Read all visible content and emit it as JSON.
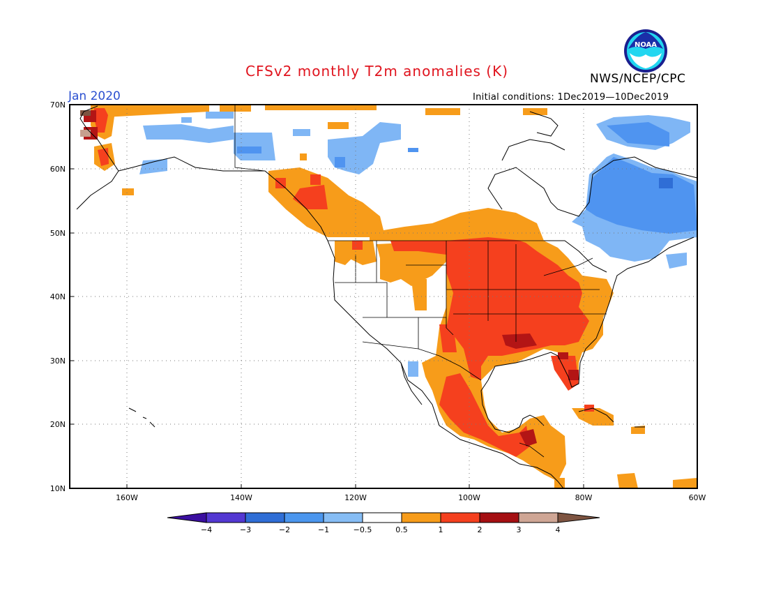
{
  "header": {
    "title": "CFSv2 monthly T2m anomalies (K)",
    "month": "Jan 2020",
    "initial_conditions": "Initial conditions: 1Dec2019—10Dec2019",
    "organization": "NWS/NCEP/CPC",
    "logo_text": "NOAA"
  },
  "map": {
    "lat_labels": [
      "70N",
      "60N",
      "50N",
      "40N",
      "30N",
      "20N",
      "10N"
    ],
    "lon_labels": [
      "160W",
      "140W",
      "120W",
      "100W",
      "80W",
      "60W"
    ],
    "colors": {
      "anom_m05_m1": "#7fb6f5",
      "anom_m1_m2": "#4f94f0",
      "anom_05_1": "#f79c1a",
      "anom_1_2": "#f5401e",
      "anom_2_3": "#b31515",
      "anom_3_4": "#c6a08e",
      "anom_gt4": "#7e5441"
    }
  },
  "colorbar": {
    "labels": [
      "−4",
      "−3",
      "−2",
      "−1",
      "−0.5",
      "0.5",
      "1",
      "2",
      "3",
      "4"
    ],
    "colors": [
      "#3b0fa0",
      "#5338d2",
      "#2f6ed6",
      "#4b96ee",
      "#86bdf5",
      "#ffffff",
      "#f79c1a",
      "#f5401e",
      "#a50f12",
      "#cfa695",
      "#7e5441"
    ]
  }
}
